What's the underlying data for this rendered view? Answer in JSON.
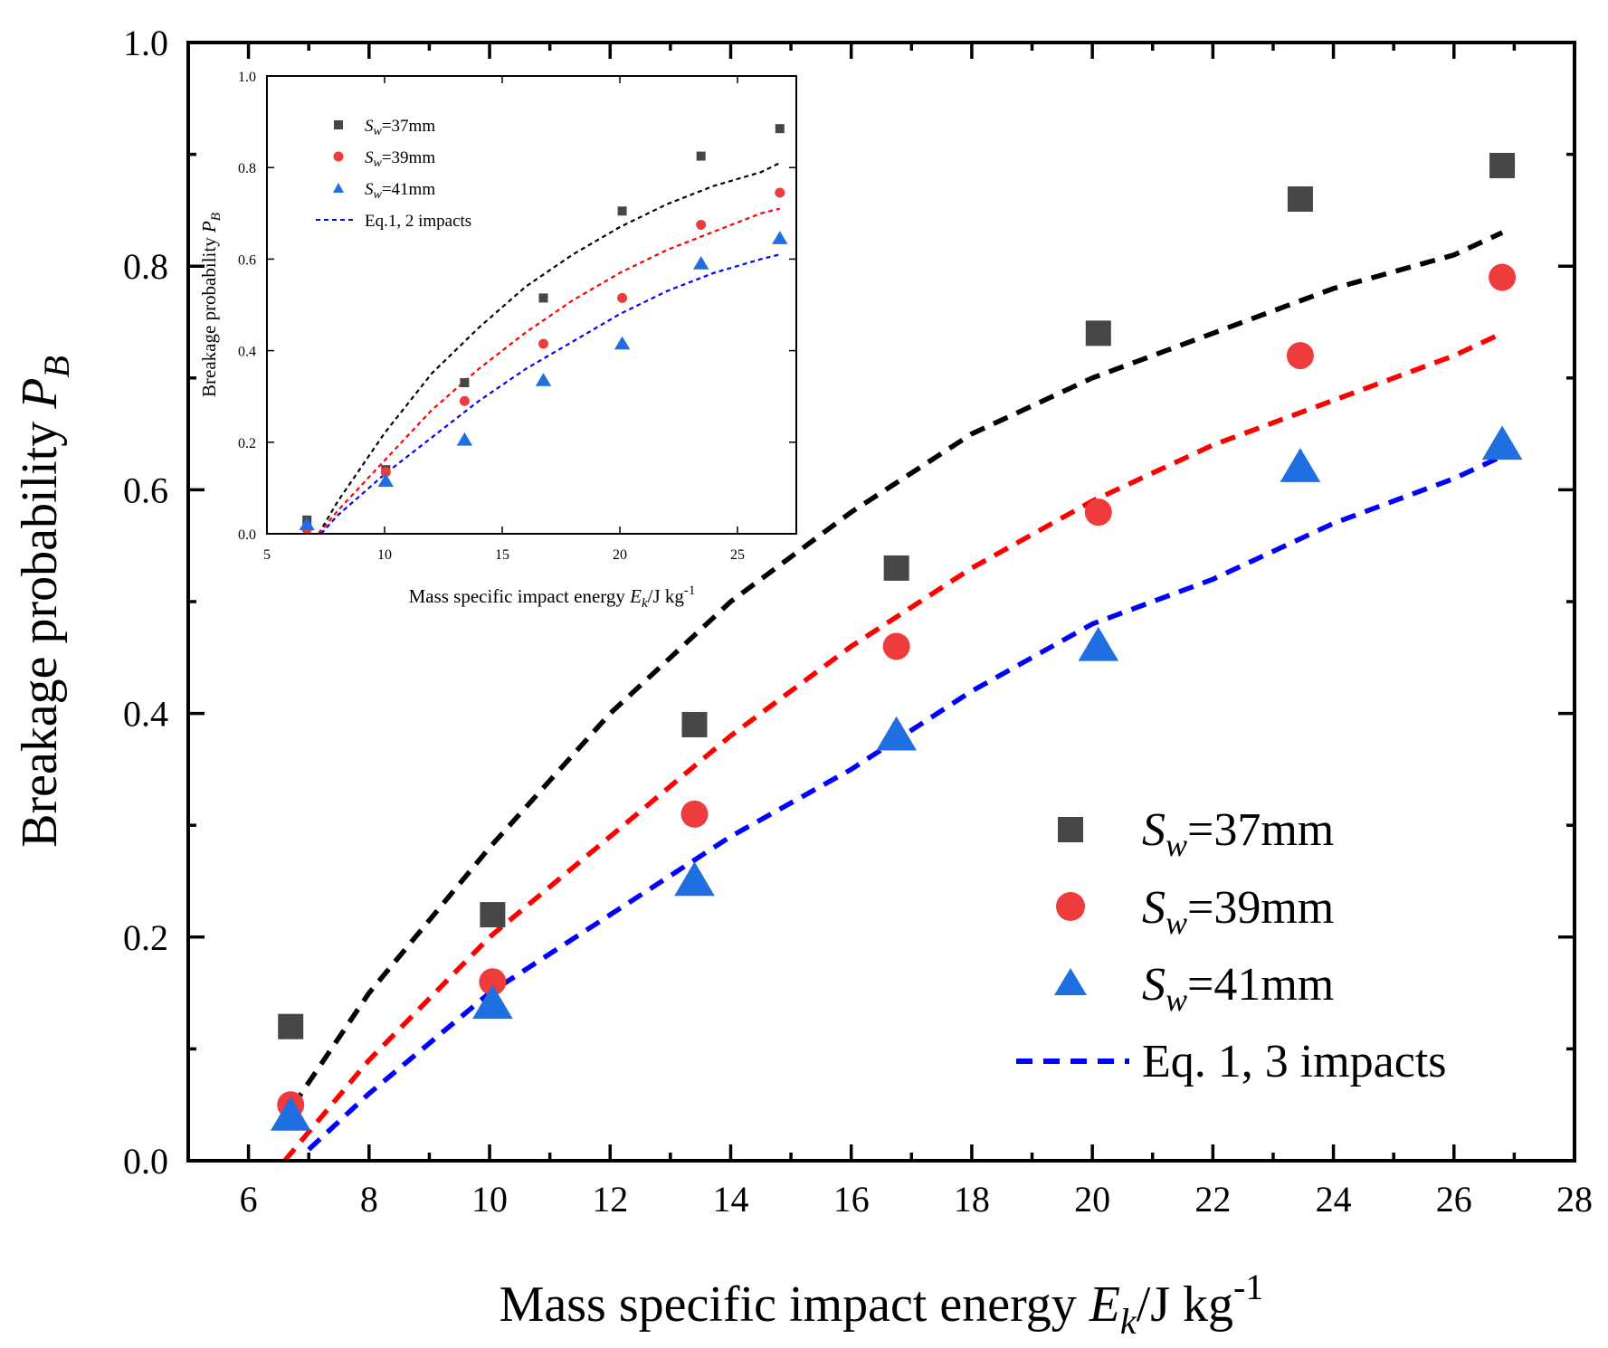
{
  "chart_data": [
    {
      "id": "main",
      "type": "scatter",
      "title": "",
      "xlabel": "Mass specific impact energy",
      "xlabel_symbol": "E",
      "xlabel_symbol_sub": "k",
      "xlabel_unit": "/J kg",
      "xlabel_unit_sup": "-1",
      "ylabel": "Breakage probability",
      "ylabel_symbol": "P",
      "ylabel_symbol_sub": "B",
      "xlim": [
        5,
        28
      ],
      "ylim": [
        0.0,
        1.0
      ],
      "xticks": [
        6,
        8,
        10,
        12,
        14,
        16,
        18,
        20,
        22,
        24,
        26,
        28
      ],
      "yticks": [
        0.0,
        0.2,
        0.4,
        0.6,
        0.8,
        1.0
      ],
      "xtick_labels": [
        "6",
        "8",
        "10",
        "12",
        "14",
        "16",
        "18",
        "20",
        "22",
        "24",
        "26",
        "28"
      ],
      "ytick_labels": [
        "0.0",
        "0.2",
        "0.4",
        "0.6",
        "0.8",
        "1.0"
      ],
      "legend_position": "bottom-right",
      "series": [
        {
          "name": "Sw=37mm",
          "prefix": "S",
          "sub": "w",
          "suffix": "=37mm",
          "marker": "square",
          "color": "#464646",
          "x": [
            6.7,
            10.05,
            13.4,
            16.75,
            20.1,
            23.45,
            26.8
          ],
          "y": [
            0.12,
            0.22,
            0.39,
            0.53,
            0.74,
            0.86,
            0.89
          ]
        },
        {
          "name": "Sw=39mm",
          "prefix": "S",
          "sub": "w",
          "suffix": "=39mm",
          "marker": "circle",
          "color": "#ee3b3b",
          "x": [
            6.7,
            10.05,
            13.4,
            16.75,
            20.1,
            23.45,
            26.8
          ],
          "y": [
            0.05,
            0.16,
            0.31,
            0.46,
            0.58,
            0.72,
            0.79
          ]
        },
        {
          "name": "Sw=41mm",
          "prefix": "S",
          "sub": "w",
          "suffix": "=41mm",
          "marker": "triangle",
          "color": "#1f6fe0",
          "x": [
            6.7,
            10.05,
            13.4,
            16.75,
            20.1,
            23.45,
            26.8
          ],
          "y": [
            0.04,
            0.14,
            0.25,
            0.38,
            0.46,
            0.62,
            0.64
          ]
        }
      ],
      "fit_legend_label": "Eq. 1, 3 impacts",
      "fits": [
        {
          "name": "Sw=37mm fit",
          "color": "#000000",
          "x": [
            6.5,
            8,
            10,
            12,
            14,
            16,
            18,
            20,
            22,
            24,
            26,
            26.8
          ],
          "y": [
            0.03,
            0.15,
            0.28,
            0.4,
            0.5,
            0.58,
            0.65,
            0.7,
            0.74,
            0.78,
            0.81,
            0.83
          ]
        },
        {
          "name": "Sw=39mm fit",
          "color": "#ff0000",
          "x": [
            6.6,
            8,
            10,
            12,
            14,
            16,
            18,
            20,
            22,
            24,
            26,
            26.8
          ],
          "y": [
            0.0,
            0.09,
            0.2,
            0.29,
            0.38,
            0.46,
            0.53,
            0.59,
            0.64,
            0.68,
            0.72,
            0.74
          ]
        },
        {
          "name": "Sw=41mm fit",
          "color": "#0000ff",
          "x": [
            7.0,
            8,
            10,
            12,
            14,
            16,
            18,
            20,
            22,
            24,
            26,
            26.8
          ],
          "y": [
            0.01,
            0.06,
            0.15,
            0.22,
            0.29,
            0.35,
            0.42,
            0.48,
            0.52,
            0.57,
            0.61,
            0.63
          ]
        }
      ]
    },
    {
      "id": "inset",
      "type": "scatter",
      "title": "",
      "xlabel": "Mass specific impact energy",
      "xlabel_symbol": "E",
      "xlabel_symbol_sub": "k",
      "xlabel_unit": "/J kg",
      "xlabel_unit_sup": "-1",
      "ylabel": "Breakage probability",
      "ylabel_symbol": "P",
      "ylabel_symbol_sub": "B",
      "xlim": [
        5,
        27.5
      ],
      "ylim": [
        0.0,
        1.0
      ],
      "xticks": [
        5,
        10,
        15,
        20,
        25
      ],
      "yticks": [
        0.0,
        0.2,
        0.4,
        0.6,
        0.8,
        1.0
      ],
      "xtick_labels": [
        "5",
        "10",
        "15",
        "20",
        "25"
      ],
      "ytick_labels": [
        "0.0",
        "0.2",
        "0.4",
        "0.6",
        "0.8",
        "1.0"
      ],
      "legend_position": "top-left",
      "series": [
        {
          "name": "Sw=37mm",
          "prefix": "S",
          "sub": "w",
          "suffix": "=37mm",
          "marker": "square",
          "color": "#464646",
          "x": [
            6.7,
            10.05,
            13.4,
            16.75,
            20.1,
            23.45,
            26.8
          ],
          "y": [
            0.03,
            0.14,
            0.33,
            0.515,
            0.705,
            0.825,
            0.885
          ]
        },
        {
          "name": "Sw=39mm",
          "prefix": "S",
          "sub": "w",
          "suffix": "=39mm",
          "marker": "circle",
          "color": "#ee3b3b",
          "x": [
            6.7,
            10.05,
            13.4,
            16.75,
            20.1,
            23.45,
            26.8
          ],
          "y": [
            0.01,
            0.135,
            0.29,
            0.415,
            0.515,
            0.675,
            0.745
          ]
        },
        {
          "name": "Sw=41mm",
          "prefix": "S",
          "sub": "w",
          "suffix": "=41mm",
          "marker": "triangle",
          "color": "#1f6fe0",
          "x": [
            6.7,
            10.05,
            13.4,
            16.75,
            20.1,
            23.45,
            26.8
          ],
          "y": [
            0.02,
            0.115,
            0.205,
            0.335,
            0.415,
            0.59,
            0.645
          ]
        }
      ],
      "fit_legend_label": "Eq.1, 2 impacts",
      "fits": [
        {
          "name": "Sw=37mm fit",
          "color": "#000000",
          "x": [
            7.2,
            8,
            10,
            12,
            14,
            16,
            18,
            20,
            22,
            24,
            26,
            26.8
          ],
          "y": [
            0.0,
            0.07,
            0.22,
            0.35,
            0.45,
            0.54,
            0.61,
            0.67,
            0.72,
            0.76,
            0.79,
            0.81
          ]
        },
        {
          "name": "Sw=39mm fit",
          "color": "#ff0000",
          "x": [
            7.2,
            8,
            10,
            12,
            14,
            16,
            18,
            20,
            22,
            24,
            26,
            26.8
          ],
          "y": [
            0.0,
            0.05,
            0.16,
            0.27,
            0.36,
            0.44,
            0.51,
            0.57,
            0.62,
            0.66,
            0.7,
            0.71
          ]
        },
        {
          "name": "Sw=41mm fit",
          "color": "#0000ff",
          "x": [
            7.3,
            8,
            10,
            12,
            14,
            16,
            18,
            20,
            22,
            24,
            26,
            26.8
          ],
          "y": [
            0.0,
            0.04,
            0.13,
            0.21,
            0.29,
            0.36,
            0.42,
            0.48,
            0.53,
            0.57,
            0.6,
            0.61
          ]
        }
      ]
    }
  ]
}
